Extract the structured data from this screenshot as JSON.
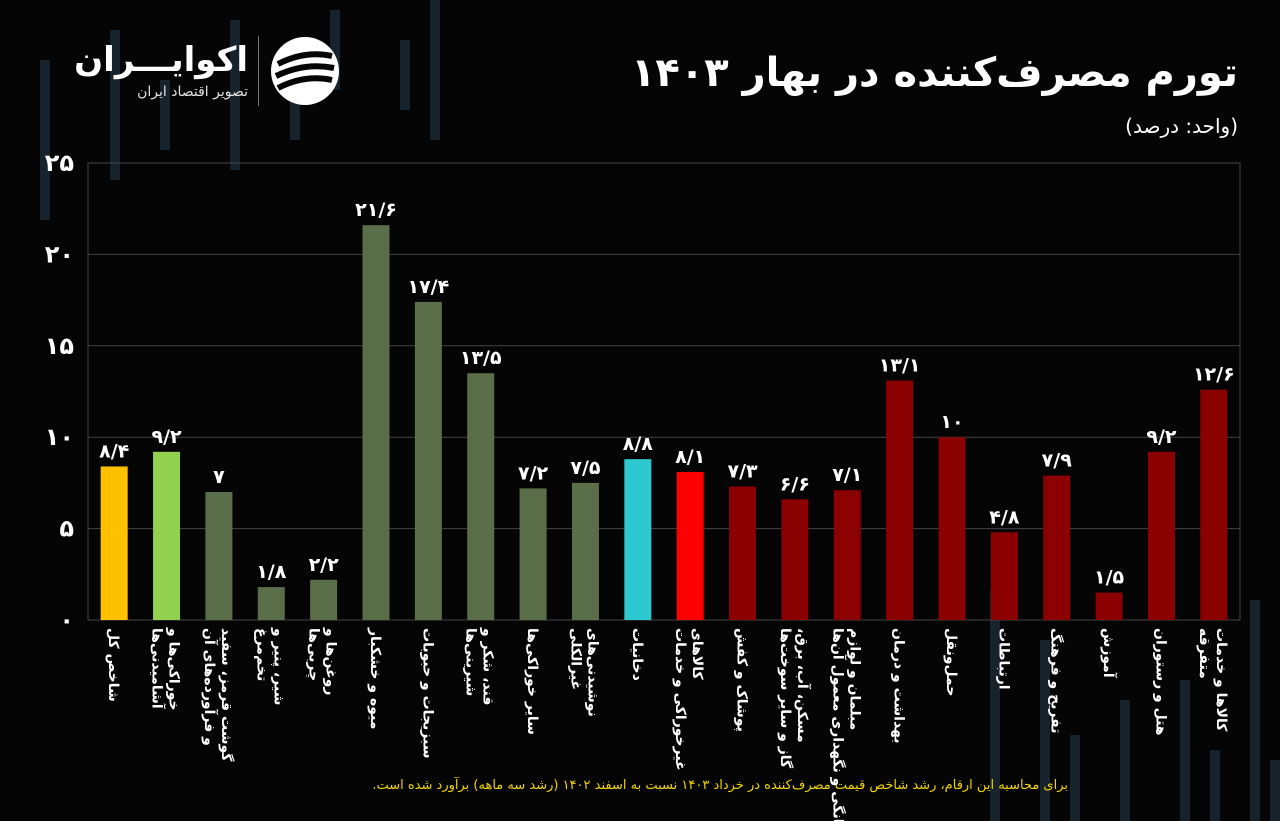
{
  "logo": {
    "name": "اکوایـــران",
    "tagline": "تصویر اقتصاد ایران",
    "mark_icon": "ecoiran-logo-icon"
  },
  "header": {
    "title": "تورم مصرف‌کننده در بهار ۱۴۰۳",
    "unit": "(واحد: درصد)"
  },
  "footnote": "برای محاسبه این ارقام، رشد شاخص قیمت مصرف‌کننده در خرداد ۱۴۰۳ نسبت به اسفند ۱۴۰۲ (رشد سه ماهه) برآورد شده است.",
  "colors": {
    "total": "#ffc000",
    "food_total": "#92d050",
    "food_items": "#5a6e4a",
    "tobacco": "#2ec8d0",
    "nonfood_total": "#ff0000",
    "nonfood_items": "#8b0000",
    "background": "#050505",
    "grid": "#444444"
  },
  "chart_data": {
    "type": "bar",
    "title": "تورم مصرف‌کننده در بهار ۱۴۰۳",
    "ylabel": "",
    "xlabel": "",
    "ylim": [
      0,
      25
    ],
    "y_ticks": [
      0,
      5,
      10,
      15,
      20,
      25
    ],
    "y_tick_labels": [
      "۰",
      "۵",
      "۱۰",
      "۱۵",
      "۲۰",
      "۲۵"
    ],
    "grid": true,
    "categories": [
      "شاخص کل",
      "خوراکی‌ها و آشامیدنی‌ها",
      "گوشت قرمز، سفید و فرآورده‌های آن",
      "شیر، پنیر و تخم‌مرغ",
      "روغن‌ها و چربی‌ها",
      "میوه و خشکبار",
      "سبزیجات و حبوبات",
      "قند، شکر و شیرینی‌ها",
      "سایر خوراکی‌ها",
      "نوشیدنی‌های غیرالکلی",
      "دخانیات",
      "کالاهای غیرخوراکی و خدمات",
      "پوشاک و کفش",
      "مسکن، آب، برق، گاز و سایر سوخت‌ها",
      "مبلمان و لوازم خانگی و نگهداری معمول آن‌ها",
      "بهداشت و درمان",
      "حمل‌ونقل",
      "ارتباطات",
      "تفریح و فرهنگ",
      "آموزش",
      "هتل و رستوران",
      "کالاها و خدمات متفرقه"
    ],
    "values": [
      8.4,
      9.2,
      7,
      1.8,
      2.2,
      21.6,
      17.4,
      13.5,
      7.2,
      7.5,
      8.8,
      8.1,
      7.3,
      6.6,
      7.1,
      13.1,
      10,
      4.8,
      7.9,
      1.5,
      9.2,
      12.6
    ],
    "value_labels": [
      "۸/۴",
      "۹/۲",
      "۷",
      "۱/۸",
      "۲/۲",
      "۲۱/۶",
      "۱۷/۴",
      "۱۳/۵",
      "۷/۲",
      "۷/۵",
      "۸/۸",
      "۸/۱",
      "۷/۳",
      "۶/۶",
      "۷/۱",
      "۱۳/۱",
      "۱۰",
      "۴/۸",
      "۷/۹",
      "۱/۵",
      "۹/۲",
      "۱۲/۶"
    ],
    "groups": [
      "total",
      "food_total",
      "food_items",
      "food_items",
      "food_items",
      "food_items",
      "food_items",
      "food_items",
      "food_items",
      "food_items",
      "tobacco",
      "nonfood_total",
      "nonfood_items",
      "nonfood_items",
      "nonfood_items",
      "nonfood_items",
      "nonfood_items",
      "nonfood_items",
      "nonfood_items",
      "nonfood_items",
      "nonfood_items",
      "nonfood_items"
    ]
  }
}
